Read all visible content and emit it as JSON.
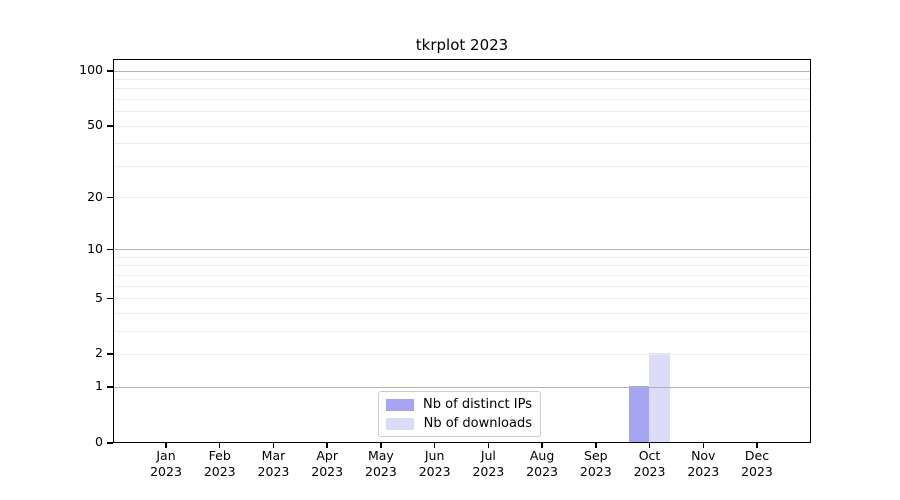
{
  "chart_data": {
    "type": "bar",
    "title": "tkrplot 2023",
    "categories": [
      {
        "month": "Jan",
        "year": "2023"
      },
      {
        "month": "Feb",
        "year": "2023"
      },
      {
        "month": "Mar",
        "year": "2023"
      },
      {
        "month": "Apr",
        "year": "2023"
      },
      {
        "month": "May",
        "year": "2023"
      },
      {
        "month": "Jun",
        "year": "2023"
      },
      {
        "month": "Jul",
        "year": "2023"
      },
      {
        "month": "Aug",
        "year": "2023"
      },
      {
        "month": "Sep",
        "year": "2023"
      },
      {
        "month": "Oct",
        "year": "2023"
      },
      {
        "month": "Nov",
        "year": "2023"
      },
      {
        "month": "Dec",
        "year": "2023"
      }
    ],
    "series": [
      {
        "name": "Nb of distinct IPs",
        "color": "#a5a5f1",
        "values": [
          0,
          0,
          0,
          0,
          0,
          0,
          0,
          0,
          0,
          1,
          0,
          0
        ]
      },
      {
        "name": "Nb of downloads",
        "color": "#dcdcf9",
        "values": [
          0,
          0,
          0,
          0,
          0,
          0,
          0,
          0,
          0,
          2,
          0,
          0
        ]
      }
    ],
    "y_axis": {
      "scale": "log1p",
      "tick_values": [
        0,
        1,
        2,
        5,
        10,
        20,
        50,
        100
      ],
      "major_gridline_values": [
        1,
        10,
        100
      ],
      "minor_gridline_values": [
        2,
        3,
        4,
        5,
        6,
        7,
        8,
        9,
        20,
        30,
        40,
        50,
        60,
        70,
        80,
        90
      ],
      "range_max": 100
    },
    "legend": {
      "position": "inside-bottom-center"
    },
    "colors": {
      "axis": "#000000",
      "grid_major": "#b3b3b3",
      "grid_minor": "#ececec",
      "text": "#000000",
      "background": "#ffffff"
    }
  }
}
